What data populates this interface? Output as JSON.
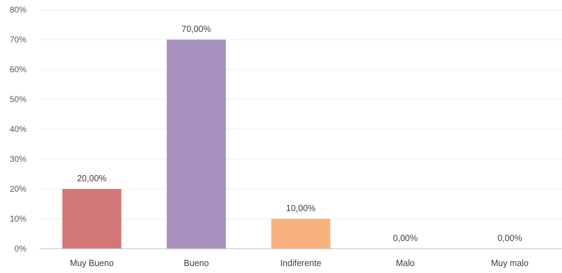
{
  "chart_data": {
    "type": "bar",
    "categories": [
      "Muy Bueno",
      "Bueno",
      "Indiferente",
      "Malo",
      "Muy malo"
    ],
    "values": [
      20,
      70,
      10,
      0,
      0
    ],
    "data_labels": [
      "20,00%",
      "70,00%",
      "10,00%",
      "0,00%",
      "0,00%"
    ],
    "bar_colors": [
      "#d37678",
      "#a590c0",
      "#f8b27e",
      "#f8b27e",
      "#f8b27e"
    ],
    "ylim": [
      0,
      80
    ],
    "y_ticks": [
      0,
      10,
      20,
      30,
      40,
      50,
      60,
      70,
      80
    ],
    "y_tick_labels": [
      "0%",
      "10%",
      "20%",
      "30%",
      "40%",
      "50%",
      "60%",
      "70%",
      "80%"
    ],
    "grid": true,
    "gridline_color": "#ececec",
    "axis_color": "#bfbfbf",
    "legend": "none"
  }
}
